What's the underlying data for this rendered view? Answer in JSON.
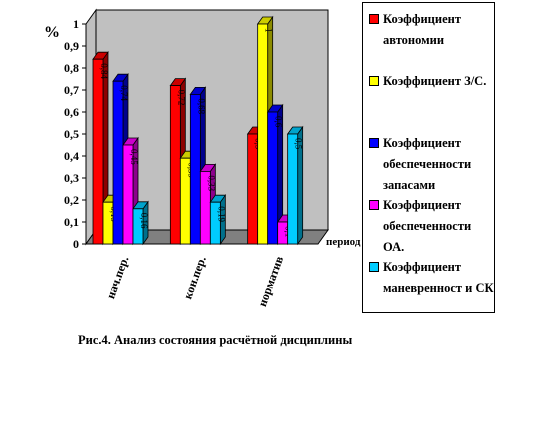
{
  "chart_data": {
    "type": "bar",
    "categories": [
      "нач.пер.",
      "кон.пер.",
      "норматив"
    ],
    "series": [
      {
        "name": "Коэффициент автономии",
        "color": "#ff0000",
        "values": [
          0.84,
          0.72,
          0.5
        ],
        "labels": [
          "0,84",
          "0,72",
          "0,5"
        ]
      },
      {
        "name": "Коэффициент З/С.",
        "color": "#ffff00",
        "values": [
          0.19,
          0.39,
          1
        ],
        "labels": [
          "0,19",
          "0,39",
          "1"
        ]
      },
      {
        "name": "Коэффициент обеспеченности запасами",
        "color": "#0000ff",
        "values": [
          0.74,
          0.68,
          0.6
        ],
        "labels": [
          "0,74",
          "0,68",
          "0,6"
        ]
      },
      {
        "name": "Коэффициент обеспеченности ОА.",
        "color": "#ff00ff",
        "values": [
          0.45,
          0.33,
          0.1
        ],
        "labels": [
          "0,45",
          "0,33",
          "0,1"
        ]
      },
      {
        "name": "Коэффициент маневренност и СК",
        "color": "#00ccff",
        "values": [
          0.16,
          0.19,
          0.5
        ],
        "labels": [
          "0,16",
          "0,19",
          "0,5"
        ]
      }
    ],
    "ylabel": "%",
    "xlabel": "период",
    "ylim": [
      0,
      1
    ],
    "yticks": [
      "0",
      "0,1",
      "0,2",
      "0,3",
      "0,4",
      "0,5",
      "0,6",
      "0,7",
      "0,8",
      "0,9",
      "1"
    ],
    "legend_position": "right",
    "grid": false,
    "wall_color": "#c0c0c0",
    "floor_color": "#808080"
  },
  "caption": "Рис.4. Анализ состояния расчётной дисциплины"
}
